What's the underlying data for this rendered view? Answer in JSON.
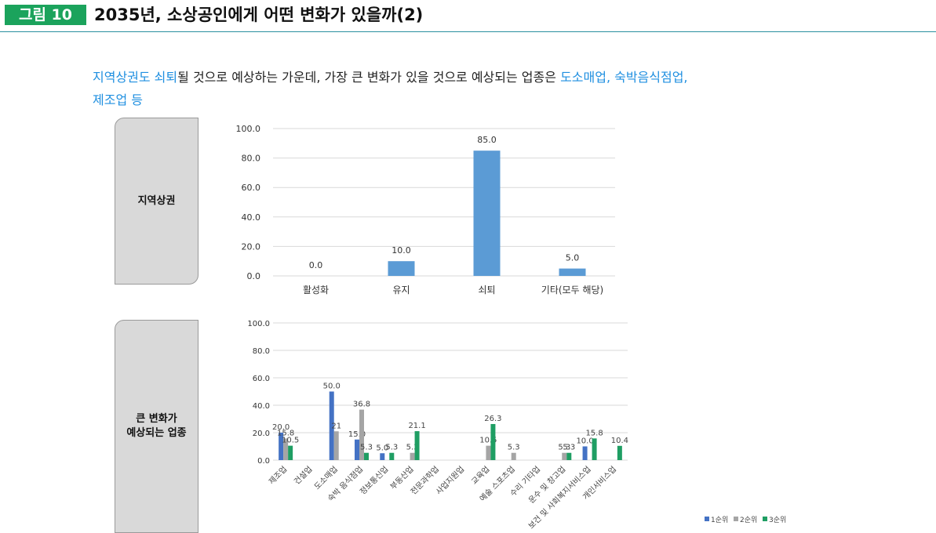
{
  "figure": {
    "label": "그림 10",
    "title": "2035년, 소상공인에게 어떤 변화가 있을까(2)"
  },
  "lead": {
    "part1_highlight": "지역상권도 쇠퇴",
    "part2": "될 것으로 예상하는 가운데, 가장 큰 변화가 있을 것으로 예상되는 업종은 ",
    "part3_highlight": "도소매업, 숙박음식점업,",
    "part4_highlight": "제조업 등"
  },
  "sections": [
    {
      "label_lines": [
        "지역상권"
      ]
    },
    {
      "label_lines": [
        "큰 변화가",
        "예상되는 업종"
      ]
    }
  ],
  "colors": {
    "label_bg": "#1ba35c",
    "highlight_text": "#1f8fe0",
    "bar_single": "#5b9bd5",
    "rank1": "#4472c4",
    "rank2": "#a5a5a5",
    "rank3": "#1f9e63"
  },
  "chart_data": [
    {
      "type": "bar",
      "categories": [
        "활성화",
        "유지",
        "쇠퇴",
        "기타(모두 해당)"
      ],
      "values": [
        0.0,
        10.0,
        85.0,
        5.0
      ],
      "value_labels": [
        "0.0",
        "10.0",
        "85.0",
        "5.0"
      ],
      "ylim": [
        0,
        100
      ],
      "yticks": [
        "0.0",
        "20.0",
        "40.0",
        "60.0",
        "80.0",
        "100.0"
      ],
      "grid": true
    },
    {
      "type": "bar",
      "categories": [
        "제조업",
        "건설업",
        "도소매업",
        "숙박 음식점업",
        "정보통신업",
        "부동산업",
        "전문과학업",
        "사업지원업",
        "교육업",
        "예술 스포츠업",
        "수리 기타업",
        "운수 및 창고업",
        "보건 및 사회복지서비스업",
        "개인서비스업"
      ],
      "series": [
        {
          "name": "1순위",
          "values": [
            20.0,
            null,
            50.0,
            15.0,
            5.0,
            null,
            null,
            null,
            null,
            null,
            null,
            null,
            10.0,
            null
          ],
          "value_labels": [
            "20.0",
            "",
            "50.0",
            "15.0",
            "5.0",
            "",
            "",
            "",
            "",
            "",
            "",
            "",
            "10.0",
            ""
          ]
        },
        {
          "name": "2순위",
          "values": [
            15.8,
            null,
            21,
            36.8,
            null,
            5.3,
            null,
            null,
            10.5,
            5.3,
            null,
            5.3,
            null,
            null
          ],
          "value_labels": [
            "15.8",
            "",
            "21",
            "36.8",
            "",
            "5.3",
            "",
            "",
            "10.5",
            "5.3",
            "",
            "5.3",
            "",
            ""
          ]
        },
        {
          "name": "3순위",
          "values": [
            10.5,
            null,
            null,
            5.3,
            5.3,
            21.1,
            null,
            null,
            26.3,
            null,
            null,
            5.3,
            15.8,
            10.4
          ],
          "value_labels": [
            "10.5",
            "",
            "",
            "5.3",
            "5.3",
            "21.1",
            "",
            "",
            "26.3",
            "",
            "",
            "5.3",
            "15.8",
            "10.4"
          ]
        }
      ],
      "ylim": [
        0,
        100
      ],
      "yticks": [
        "0.0",
        "20.0",
        "40.0",
        "60.0",
        "80.0",
        "100.0"
      ],
      "grid": true,
      "legend": "bottom-right"
    }
  ]
}
